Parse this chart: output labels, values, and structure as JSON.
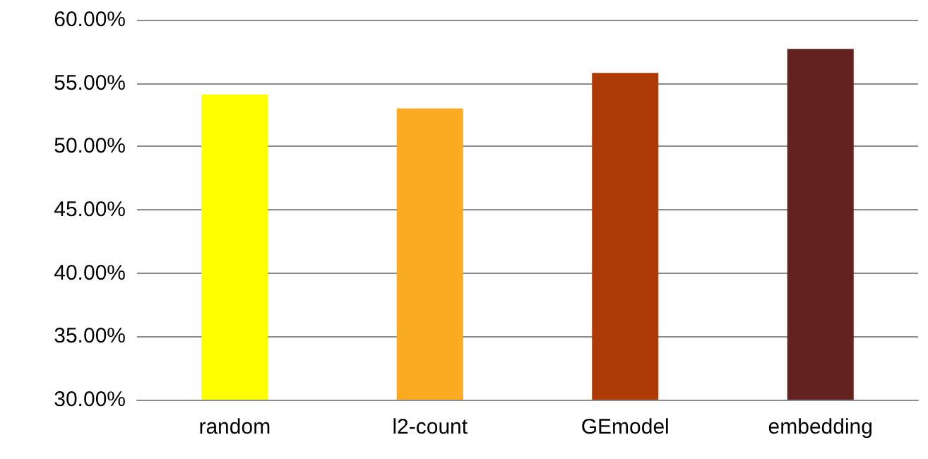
{
  "chart_data": {
    "type": "bar",
    "categories": [
      "random",
      "l2-count",
      "GEmodel",
      "embedding"
    ],
    "values": [
      54.1,
      53.0,
      55.8,
      57.7
    ],
    "colors": [
      "#ffff00",
      "#fbab22",
      "#ae3a05",
      "#63221f"
    ],
    "ylim": [
      30,
      60
    ],
    "yticks": [
      {
        "value": 30,
        "label": "30.00%"
      },
      {
        "value": 35,
        "label": "35.00%"
      },
      {
        "value": 40,
        "label": "40.00%"
      },
      {
        "value": 45,
        "label": "45.00%"
      },
      {
        "value": 50,
        "label": "50.00%"
      },
      {
        "value": 55,
        "label": "55.00%"
      },
      {
        "value": 60,
        "label": "60.00%"
      }
    ],
    "grid": "y"
  }
}
